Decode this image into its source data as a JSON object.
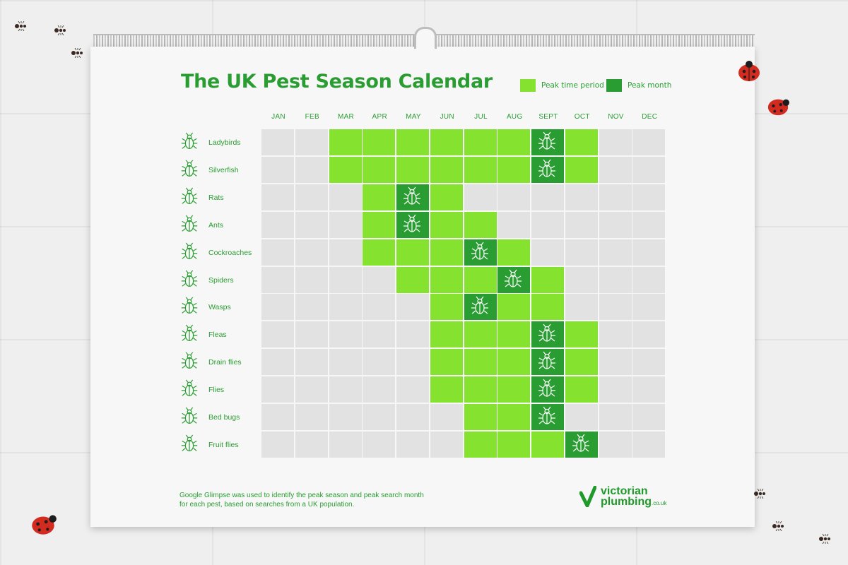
{
  "title": "The UK Pest Season Calendar",
  "legend": {
    "peak_period_label": "Peak time period",
    "peak_month_label": "Peak month"
  },
  "colors": {
    "peak_period": "#85e22e",
    "peak_month": "#2a9d32",
    "off": "#e2e2e2",
    "text": "#2a9d32"
  },
  "footnote": "Google Glimpse was used to identify the peak season and peak search month for each pest, based on searches from a UK population.",
  "logo": {
    "line1": "victorian",
    "line2": "plumbing",
    "suffix": ".co.uk"
  },
  "chart_data": {
    "type": "heatmap",
    "title": "The UK Pest Season Calendar",
    "columns": [
      "JAN",
      "FEB",
      "MAR",
      "APR",
      "MAY",
      "JUN",
      "JUL",
      "AUG",
      "SEPT",
      "OCT",
      "NOV",
      "DEC"
    ],
    "rows": [
      {
        "name": "Ladybirds",
        "icon": "ladybird-icon",
        "peak_period": [
          "MAR",
          "OCT"
        ],
        "peak_month": "SEPT"
      },
      {
        "name": "Silverfish",
        "icon": "silverfish-icon",
        "peak_period": [
          "MAR",
          "OCT"
        ],
        "peak_month": "SEPT"
      },
      {
        "name": "Rats",
        "icon": "rat-icon",
        "peak_period": [
          "APR",
          "JUN"
        ],
        "peak_month": "MAY"
      },
      {
        "name": "Ants",
        "icon": "ant-icon",
        "peak_period": [
          "APR",
          "JUL"
        ],
        "peak_month": "MAY"
      },
      {
        "name": "Cockroaches",
        "icon": "cockroach-icon",
        "peak_period": [
          "APR",
          "AUG"
        ],
        "peak_month": "JUL"
      },
      {
        "name": "Spiders",
        "icon": "spider-icon",
        "peak_period": [
          "MAY",
          "SEPT"
        ],
        "peak_month": "AUG"
      },
      {
        "name": "Wasps",
        "icon": "wasp-icon",
        "peak_period": [
          "JUN",
          "SEPT"
        ],
        "peak_month": "JUL"
      },
      {
        "name": "Fleas",
        "icon": "flea-icon",
        "peak_period": [
          "JUN",
          "OCT"
        ],
        "peak_month": "SEPT"
      },
      {
        "name": "Drain flies",
        "icon": "drain-fly-icon",
        "peak_period": [
          "JUN",
          "OCT"
        ],
        "peak_month": "SEPT"
      },
      {
        "name": "Flies",
        "icon": "fly-icon",
        "peak_period": [
          "JUN",
          "OCT"
        ],
        "peak_month": "SEPT"
      },
      {
        "name": "Bed bugs",
        "icon": "bed-bug-icon",
        "peak_period": [
          "JUL",
          "SEPT"
        ],
        "peak_month": "SEPT"
      },
      {
        "name": "Fruit flies",
        "icon": "fruit-fly-icon",
        "peak_period": [
          "JUL",
          "OCT"
        ],
        "peak_month": "OCT"
      }
    ]
  }
}
